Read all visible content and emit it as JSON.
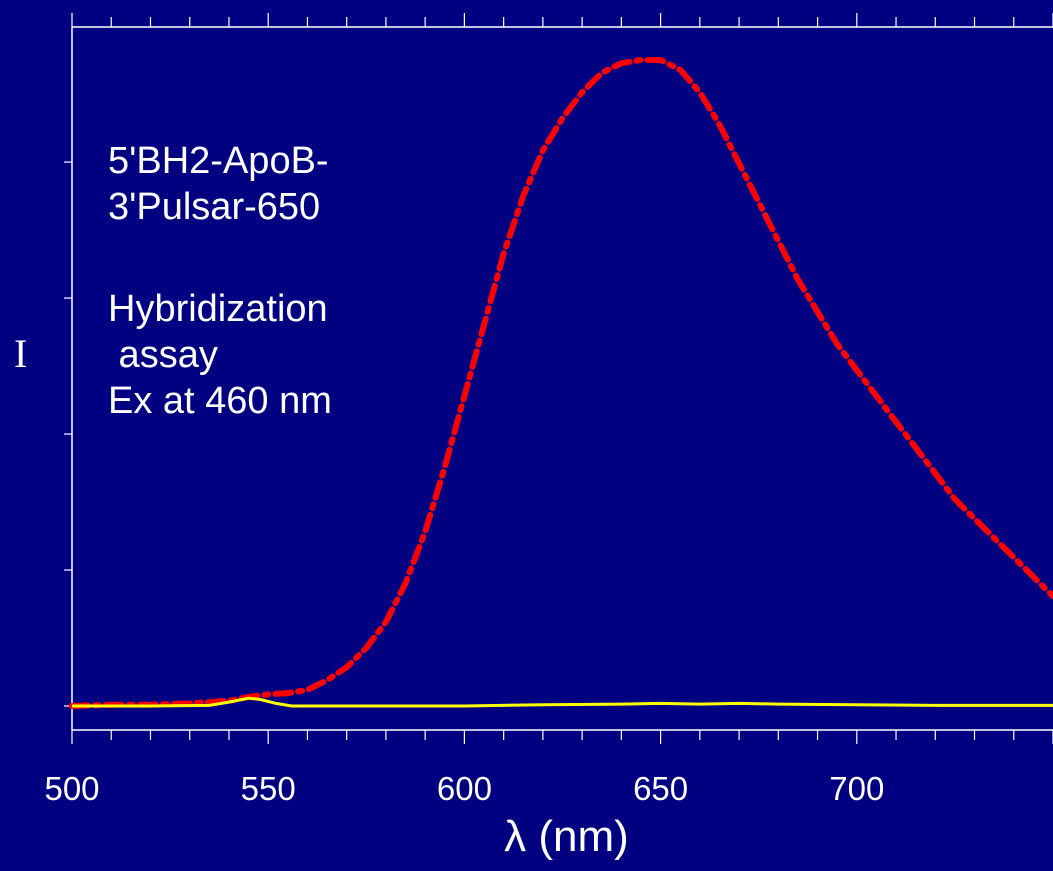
{
  "chart_data": {
    "type": "line",
    "xlabel": "λ (nm)",
    "ylabel": "I",
    "xlim": [
      500,
      750
    ],
    "ylim": [
      0,
      1
    ],
    "x_ticks": [
      500,
      550,
      600,
      650,
      700
    ],
    "grid": false,
    "annotations": [
      "5'BH2-ApoB-\n3'Pulsar-650",
      "Hybridization\n assay\nEx at 460 nm"
    ],
    "series": [
      {
        "color": "#ff0000",
        "style": "dash-dot",
        "x": [
          500,
          510,
          520,
          530,
          540,
          545,
          550,
          555,
          560,
          565,
          570,
          575,
          580,
          585,
          590,
          595,
          600,
          605,
          610,
          615,
          620,
          625,
          630,
          635,
          640,
          645,
          650,
          655,
          660,
          665,
          670,
          675,
          680,
          685,
          690,
          695,
          700,
          705,
          710,
          715,
          720,
          725,
          730,
          735,
          740,
          745,
          750
        ],
        "values": [
          0.0,
          0.002,
          0.002,
          0.004,
          0.008,
          0.014,
          0.018,
          0.02,
          0.025,
          0.04,
          0.06,
          0.09,
          0.13,
          0.19,
          0.27,
          0.37,
          0.48,
          0.59,
          0.7,
          0.79,
          0.86,
          0.91,
          0.95,
          0.98,
          0.995,
          1.0,
          1.0,
          0.985,
          0.95,
          0.9,
          0.84,
          0.78,
          0.72,
          0.66,
          0.61,
          0.56,
          0.52,
          0.48,
          0.44,
          0.4,
          0.36,
          0.32,
          0.29,
          0.26,
          0.23,
          0.2,
          0.17
        ]
      },
      {
        "color": "#ffff00",
        "style": "solid",
        "x": [
          500,
          520,
          535,
          540,
          545,
          548,
          552,
          556,
          560,
          580,
          600,
          620,
          640,
          650,
          660,
          670,
          680,
          700,
          720,
          750
        ],
        "values": [
          0.0,
          0.0,
          0.001,
          0.006,
          0.012,
          0.01,
          0.004,
          0.0,
          0.0,
          0.0,
          0.0,
          0.002,
          0.003,
          0.004,
          0.003,
          0.004,
          0.003,
          0.002,
          0.001,
          0.001
        ]
      }
    ]
  }
}
